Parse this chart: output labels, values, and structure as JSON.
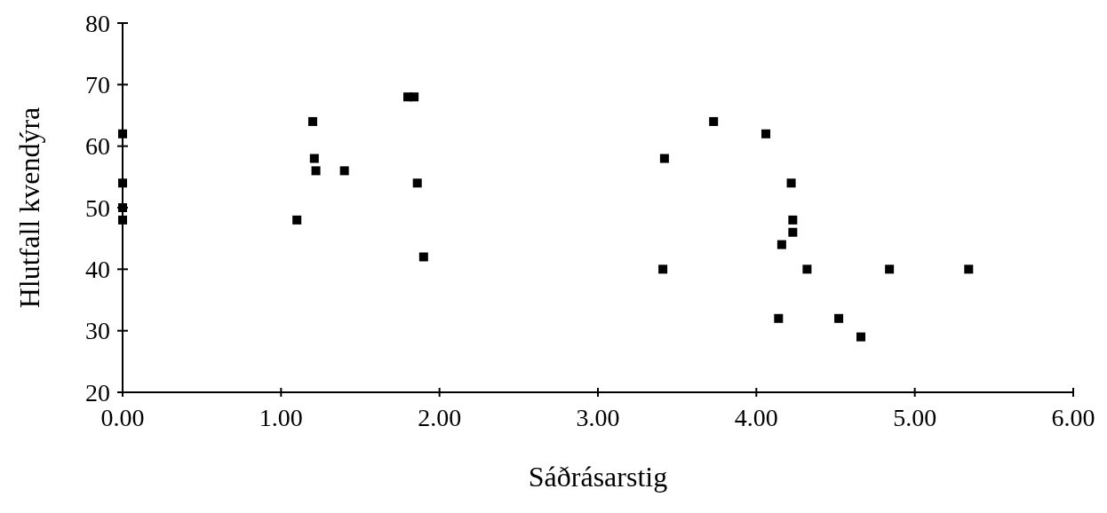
{
  "chart_data": {
    "type": "scatter",
    "xlabel": "Sáðrásarstig",
    "ylabel": "Hlutfall kvendýra",
    "x": [
      0,
      0,
      0,
      0,
      1.1,
      1.2,
      1.21,
      1.22,
      1.4,
      1.8,
      1.84,
      1.86,
      1.9,
      3.42,
      3.73,
      4.06,
      4.22,
      4.23,
      4.23,
      4.16,
      3.41,
      4.32,
      4.84,
      5.34,
      4.14,
      4.52,
      4.66
    ],
    "values": [
      62,
      54,
      50,
      48,
      48,
      64,
      58,
      56,
      56,
      68,
      68,
      54,
      42,
      58,
      64,
      62,
      54,
      48,
      46,
      44,
      40,
      40,
      40,
      40,
      32,
      32,
      29
    ],
    "color": "#000000",
    "marker": "square",
    "xlim": [
      0,
      6
    ],
    "xticks": [
      {
        "value": 0,
        "label": "0.00"
      },
      {
        "value": 1,
        "label": "1.00"
      },
      {
        "value": 2,
        "label": "2.00"
      },
      {
        "value": 3,
        "label": "3.00"
      },
      {
        "value": 4,
        "label": "4.00"
      },
      {
        "value": 5,
        "label": "5.00"
      },
      {
        "value": 6,
        "label": "6.00"
      }
    ],
    "ylim": [
      20,
      80
    ],
    "yticks": [
      20,
      30,
      40,
      50,
      60,
      70,
      80
    ]
  }
}
